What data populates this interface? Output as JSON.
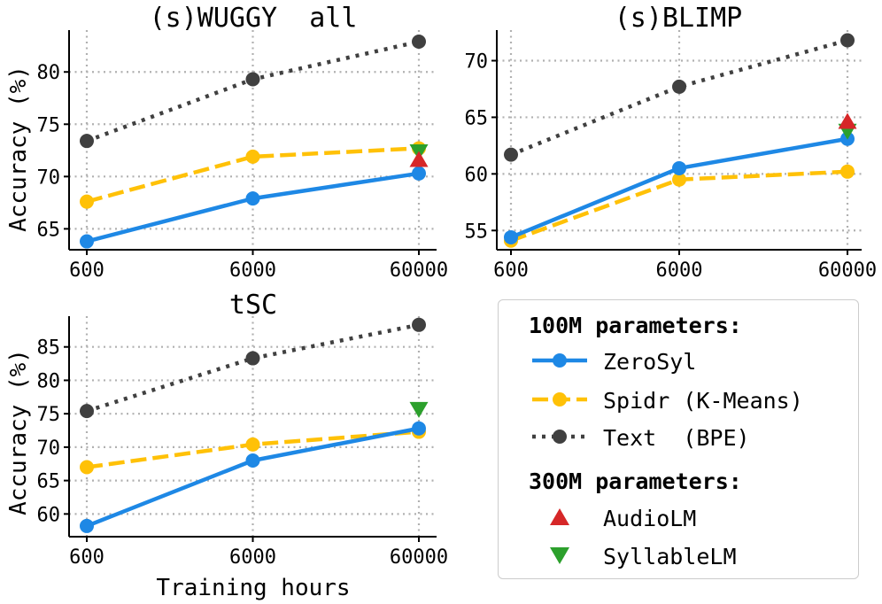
{
  "chart_data": [
    {
      "id": "wuggy",
      "type": "line",
      "title": "(s)WUGGY  all",
      "xlabel": "",
      "ylabel": "Accuracy (%)",
      "x_scale": "log",
      "categories": [
        "600",
        "6000",
        "60000"
      ],
      "x": [
        600,
        6000,
        60000
      ],
      "ylim": [
        63,
        84
      ],
      "yticks": [
        65,
        70,
        75,
        80
      ],
      "grid": true,
      "series": [
        {
          "name": "ZeroSyl",
          "values": [
            63.8,
            67.9,
            70.3
          ]
        },
        {
          "name": "Spidr (K-Means)",
          "values": [
            67.6,
            71.9,
            72.7
          ]
        },
        {
          "name": "Text  (BPE)",
          "values": [
            73.4,
            79.3,
            82.9
          ]
        }
      ],
      "markers": [
        {
          "name": "AudioLM",
          "x": 60000,
          "value": 71.6
        },
        {
          "name": "SyllableLM",
          "x": 60000,
          "value": 72.4
        }
      ]
    },
    {
      "id": "blimp",
      "type": "line",
      "title": "(s)BLIMP",
      "xlabel": "",
      "ylabel": "",
      "x_scale": "log",
      "categories": [
        "600",
        "6000",
        "60000"
      ],
      "x": [
        600,
        6000,
        60000
      ],
      "ylim": [
        53.3,
        72.7
      ],
      "yticks": [
        55,
        60,
        65,
        70
      ],
      "grid": true,
      "series": [
        {
          "name": "ZeroSyl",
          "values": [
            54.4,
            60.5,
            63.1
          ]
        },
        {
          "name": "Spidr (K-Means)",
          "values": [
            54.1,
            59.5,
            60.2
          ]
        },
        {
          "name": "Text  (BPE)",
          "values": [
            61.7,
            67.7,
            71.8
          ]
        }
      ],
      "markers": [
        {
          "name": "AudioLM",
          "x": 60000,
          "value": 64.6
        },
        {
          "name": "SyllableLM",
          "x": 60000,
          "value": 63.8
        }
      ]
    },
    {
      "id": "tsc",
      "type": "line",
      "title": "tSC",
      "xlabel": "Training hours",
      "ylabel": "Accuracy (%)",
      "x_scale": "log",
      "categories": [
        "600",
        "6000",
        "60000"
      ],
      "x": [
        600,
        6000,
        60000
      ],
      "ylim": [
        56.6,
        89.6
      ],
      "yticks": [
        60,
        65,
        70,
        75,
        80,
        85
      ],
      "grid": true,
      "series": [
        {
          "name": "ZeroSyl",
          "values": [
            58.2,
            68.0,
            72.8
          ]
        },
        {
          "name": "Spidr (K-Means)",
          "values": [
            67.0,
            70.4,
            72.3
          ]
        },
        {
          "name": "Text  (BPE)",
          "values": [
            75.4,
            83.3,
            88.3
          ]
        }
      ],
      "markers": [
        {
          "name": "SyllableLM",
          "x": 60000,
          "value": 75.7
        }
      ]
    }
  ],
  "styles": {
    "ZeroSyl": {
      "color": "#1e88e5"
    },
    "Spidr (K-Means)": {
      "color": "#ffc107"
    },
    "Text  (BPE)": {
      "color": "#404040"
    },
    "AudioLM": {
      "color": "#d62728"
    },
    "SyllableLM": {
      "color": "#2ca02c"
    }
  },
  "legend": {
    "placement": "bottom-right",
    "group_100m": "100M parameters:",
    "group_300m": "300M parameters:",
    "items_100m": [
      "ZeroSyl",
      "Spidr (K-Means)",
      "Text  (BPE)"
    ],
    "items_300m": [
      "AudioLM",
      "SyllableLM"
    ]
  }
}
